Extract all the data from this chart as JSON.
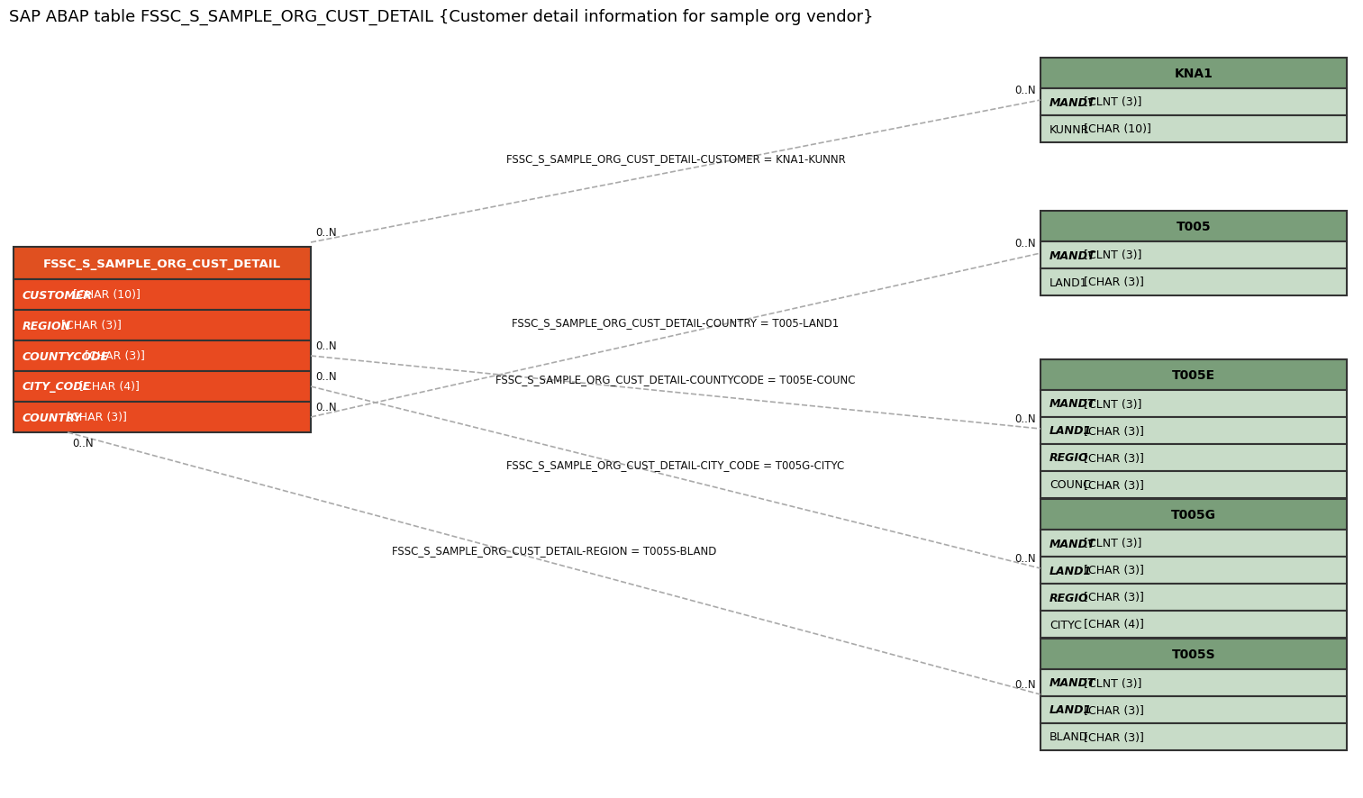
{
  "title": "SAP ABAP table FSSC_S_SAMPLE_ORG_CUST_DETAIL {Customer detail information for sample org vendor}",
  "title_fontsize": 13,
  "bg_color": "#ffffff",
  "main_table": {
    "name": "FSSC_S_SAMPLE_ORG_CUST_DETAIL",
    "header_bg": "#e05020",
    "header_fg": "#ffffff",
    "row_bg": "#e84a20",
    "row_fg": "#ffffff",
    "border_color": "#333333",
    "fields": [
      [
        "CUSTOMER",
        " [CHAR (10)]"
      ],
      [
        "REGION",
        " [CHAR (3)]"
      ],
      [
        "COUNTYCODE",
        " [CHAR (3)]"
      ],
      [
        "CITY_CODE",
        " [CHAR (4)]"
      ],
      [
        "COUNTRY",
        " [CHAR (3)]"
      ]
    ]
  },
  "related_tables": [
    {
      "name": "KNA1",
      "header_bg": "#7a9e7a",
      "header_fg": "#000000",
      "row_bg": "#c8dcc8",
      "row_fg": "#000000",
      "border_color": "#333333",
      "fields": [
        [
          "MANDT",
          " [CLNT (3)]",
          true
        ],
        [
          "KUNNR",
          " [CHAR (10)]",
          false
        ]
      ]
    },
    {
      "name": "T005",
      "header_bg": "#7a9e7a",
      "header_fg": "#000000",
      "row_bg": "#c8dcc8",
      "row_fg": "#000000",
      "border_color": "#333333",
      "fields": [
        [
          "MANDT",
          " [CLNT (3)]",
          true
        ],
        [
          "LAND1",
          " [CHAR (3)]",
          false
        ]
      ]
    },
    {
      "name": "T005E",
      "header_bg": "#7a9e7a",
      "header_fg": "#000000",
      "row_bg": "#c8dcc8",
      "row_fg": "#000000",
      "border_color": "#333333",
      "fields": [
        [
          "MANDT",
          " [CLNT (3)]",
          true
        ],
        [
          "LAND1",
          " [CHAR (3)]",
          true
        ],
        [
          "REGIO",
          " [CHAR (3)]",
          true
        ],
        [
          "COUNC",
          " [CHAR (3)]",
          false
        ]
      ]
    },
    {
      "name": "T005G",
      "header_bg": "#7a9e7a",
      "header_fg": "#000000",
      "row_bg": "#c8dcc8",
      "row_fg": "#000000",
      "border_color": "#333333",
      "fields": [
        [
          "MANDT",
          " [CLNT (3)]",
          true
        ],
        [
          "LAND1",
          " [CHAR (3)]",
          true
        ],
        [
          "REGIO",
          " [CHAR (3)]",
          true
        ],
        [
          "CITYC",
          " [CHAR (4)]",
          false
        ]
      ]
    },
    {
      "name": "T005S",
      "header_bg": "#7a9e7a",
      "header_fg": "#000000",
      "row_bg": "#c8dcc8",
      "row_fg": "#000000",
      "border_color": "#333333",
      "fields": [
        [
          "MANDT",
          " [CLNT (3)]",
          true
        ],
        [
          "LAND1",
          " [CHAR (3)]",
          true
        ],
        [
          "BLAND",
          " [CHAR (3)]",
          false
        ]
      ]
    }
  ],
  "connections": [
    {
      "label": "FSSC_S_SAMPLE_ORG_CUST_DETAIL-CUSTOMER = KNA1-KUNNR",
      "from_field": 0,
      "to_table": 0,
      "left_label": "0..N",
      "right_label": "0..N"
    },
    {
      "label": "FSSC_S_SAMPLE_ORG_CUST_DETAIL-COUNTRY = T005-LAND1",
      "from_field": 4,
      "to_table": 1,
      "left_label": "0..N",
      "right_label": "0..N"
    },
    {
      "label": "FSSC_S_SAMPLE_ORG_CUST_DETAIL-COUNTYCODE = T005E-COUNC",
      "from_field": 2,
      "to_table": 2,
      "left_label": "0..N",
      "right_label": "0..N"
    },
    {
      "label": "FSSC_S_SAMPLE_ORG_CUST_DETAIL-CITY_CODE = T005G-CITYC",
      "from_field": 3,
      "to_table": 3,
      "left_label": "0..N",
      "right_label": "0..N"
    },
    {
      "label": "FSSC_S_SAMPLE_ORG_CUST_DETAIL-REGION = T005S-BLAND",
      "from_field": 1,
      "to_table": 4,
      "left_label": "0..N",
      "right_label": "0..N"
    }
  ]
}
